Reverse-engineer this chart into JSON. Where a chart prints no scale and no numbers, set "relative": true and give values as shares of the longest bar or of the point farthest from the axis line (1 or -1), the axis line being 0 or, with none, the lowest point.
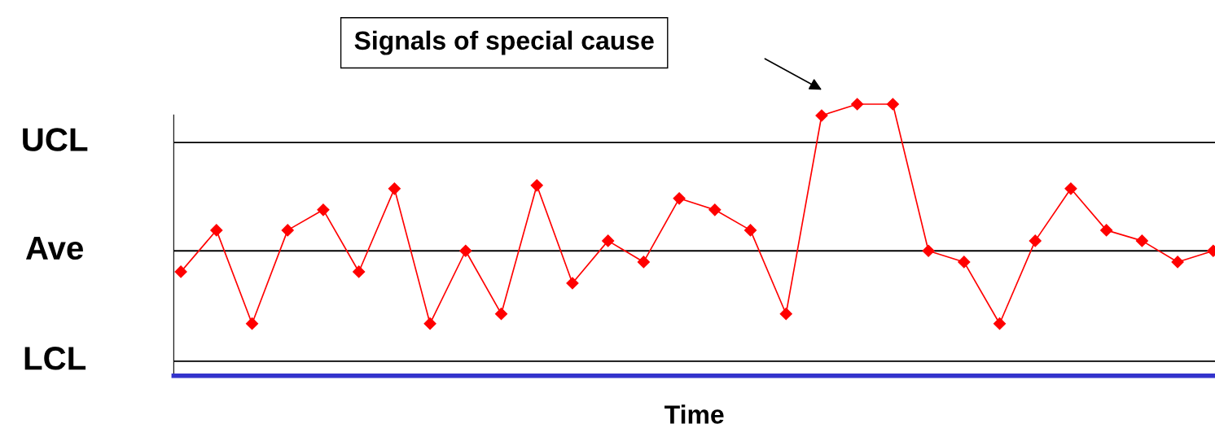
{
  "chart_data": {
    "type": "line",
    "relative": true,
    "xlabel": "Time",
    "marker": "diamond",
    "line_style": "solid",
    "categories": [
      null,
      null,
      null,
      null,
      null,
      null,
      null,
      null,
      null,
      null,
      null,
      null,
      null,
      null,
      null,
      null,
      null,
      null,
      null,
      null,
      null,
      null,
      null,
      null,
      null,
      null,
      null,
      null,
      null,
      null
    ],
    "series": [
      {
        "color": "#ff0000",
        "values": [
          0.383,
          0.536,
          0.192,
          0.536,
          0.611,
          0.383,
          0.689,
          0.192,
          0.46,
          0.228,
          0.701,
          0.341,
          0.497,
          0.419,
          0.653,
          0.611,
          0.536,
          0.228,
          0.958,
          1.0,
          1.0,
          0.46,
          0.419,
          0.192,
          0.497,
          0.689,
          0.536,
          0.497,
          0.419,
          0.46
        ]
      }
    ],
    "ref_lines": [
      {
        "axis": "y",
        "value": 0.859,
        "label": "UCL",
        "color": "#000000"
      },
      {
        "axis": "y",
        "value": 0.46,
        "label": "Ave",
        "color": "#000000"
      },
      {
        "axis": "y",
        "value": 0.054,
        "label": "LCL",
        "color": "#000000"
      }
    ],
    "annotations": [
      "Signals of special cause"
    ]
  }
}
